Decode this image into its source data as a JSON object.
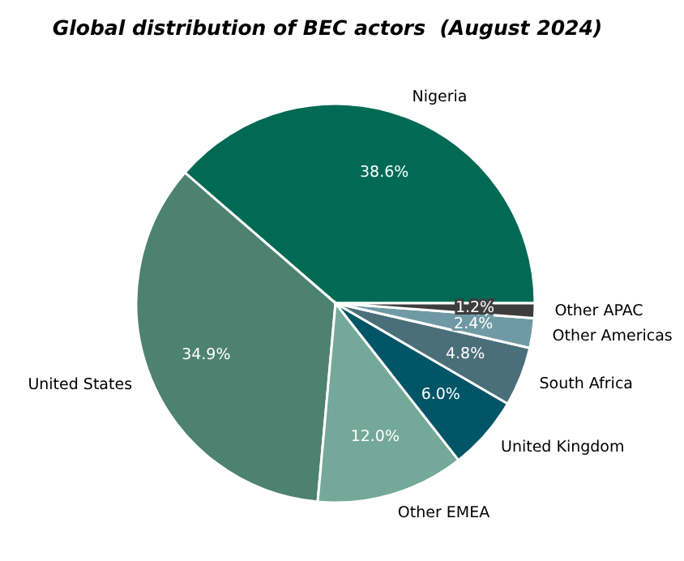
{
  "chart_data": {
    "type": "pie",
    "title": "Global distribution of BEC actors  (August 2024)",
    "categories": [
      "Nigeria",
      "United States",
      "Other EMEA",
      "United Kingdom",
      "South Africa",
      "Other Americas",
      "Other APAC"
    ],
    "values": [
      38.6,
      34.9,
      12.0,
      6.0,
      4.8,
      2.4,
      1.2
    ],
    "value_labels": [
      "38.6%",
      "34.9%",
      "12.0%",
      "6.0%",
      "4.8%",
      "2.4%",
      "1.2%"
    ],
    "colors": [
      "#006a55",
      "#4e8270",
      "#74a898",
      "#005566",
      "#4a6f7a",
      "#6f9aa5",
      "#3d3d3d"
    ]
  }
}
